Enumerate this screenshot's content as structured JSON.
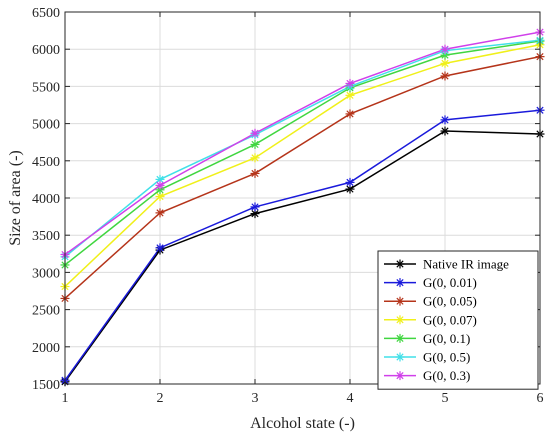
{
  "chart_data": {
    "type": "line",
    "title": "",
    "xlabel": "Alcohol state (-)",
    "ylabel": "Size of area (-)",
    "xlim": [
      1,
      6
    ],
    "ylim": [
      1500,
      6500
    ],
    "xticks": [
      1,
      2,
      3,
      4,
      5,
      6
    ],
    "yticks": [
      1500,
      2000,
      2500,
      3000,
      3500,
      4000,
      4500,
      5000,
      5500,
      6000,
      6500
    ],
    "grid": true,
    "legend_position": "bottom-right",
    "x": [
      1,
      2,
      3,
      4,
      5,
      6
    ],
    "series": [
      {
        "name": "Native IR image",
        "color": "#000000",
        "marker": "asterisk",
        "values": [
          1530,
          3300,
          3790,
          4120,
          4900,
          4860
        ]
      },
      {
        "name": "G(0, 0.01)",
        "color": "#1a1adb",
        "marker": "asterisk",
        "values": [
          1550,
          3330,
          3880,
          4210,
          5050,
          5180
        ]
      },
      {
        "name": "G(0, 0.05)",
        "color": "#b5341a",
        "marker": "asterisk",
        "values": [
          2650,
          3800,
          4330,
          5130,
          5640,
          5900
        ]
      },
      {
        "name": "G(0, 0.07)",
        "color": "#f0f01a",
        "marker": "asterisk",
        "values": [
          2810,
          4020,
          4540,
          5380,
          5810,
          6060
        ]
      },
      {
        "name": "G(0, 0.1)",
        "color": "#40d640",
        "marker": "asterisk",
        "values": [
          3100,
          4110,
          4720,
          5480,
          5920,
          6110
        ]
      },
      {
        "name": "G(0, 0.5)",
        "color": "#40e0e8",
        "marker": "asterisk",
        "values": [
          3210,
          4250,
          4850,
          5500,
          5980,
          6120
        ]
      },
      {
        "name": "G(0, 0.3)",
        "color": "#d040ea",
        "marker": "asterisk",
        "values": [
          3240,
          4170,
          4870,
          5540,
          6000,
          6230
        ]
      }
    ]
  }
}
